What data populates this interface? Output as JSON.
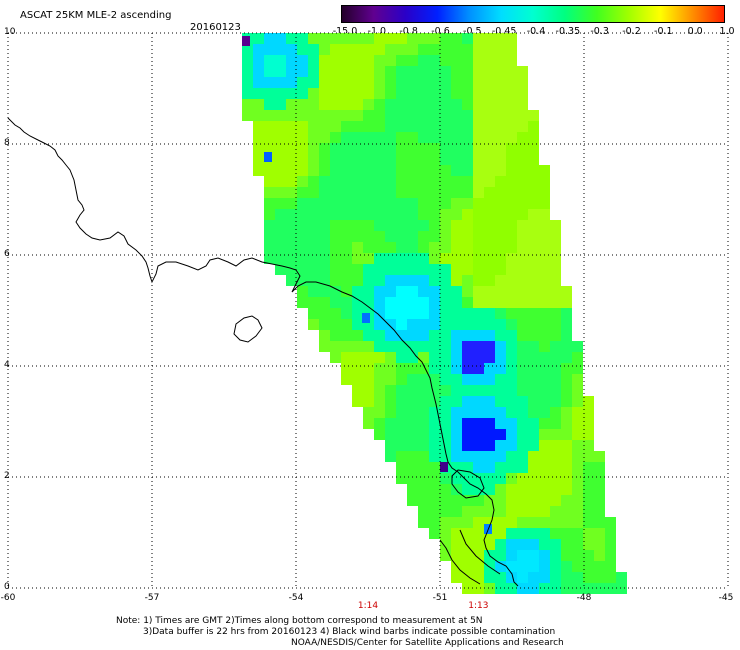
{
  "header": {
    "title": "ASCAT 25KM MLE-2 ascending",
    "date": "20160123"
  },
  "colorbar": {
    "labels": [
      "-15.0",
      "-1.0",
      "-0.8",
      "-0.6",
      "-0.5",
      "-0.45",
      "-0.4",
      "-0.35",
      "-0.3",
      "-0.2",
      "-0.1",
      "0.0",
      "1.0"
    ],
    "colors": [
      "#24002a",
      "#600090",
      "#2a00c8",
      "#0020ff",
      "#0090ff",
      "#00ddff",
      "#00ffd0",
      "#00ff80",
      "#40ff20",
      "#a0ff00",
      "#ffff00",
      "#ff9000",
      "#ff2000"
    ]
  },
  "map": {
    "lon_min": -60,
    "lon_max": -45,
    "lat_min": 0,
    "lat_max": 10,
    "y_ticks": [
      "0",
      "2",
      "4",
      "6",
      "8",
      "10"
    ],
    "x_ticks": [
      "-60",
      "-57",
      "-54",
      "-51",
      "-48",
      "-45"
    ],
    "time_labels": [
      {
        "lon": -52.5,
        "text": "1:14"
      },
      {
        "lon": -50.2,
        "text": "1:13"
      }
    ]
  },
  "notes": [
    "Note: 1) Times are GMT 2)Times along bottom correspond to measurement at 5N",
    "3)Data buffer is 22 hrs from 20160123 4) Black wind barbs indicate possible contamination",
    "NOAA/NESDIS/Center for Satellite Applications and Research"
  ]
}
